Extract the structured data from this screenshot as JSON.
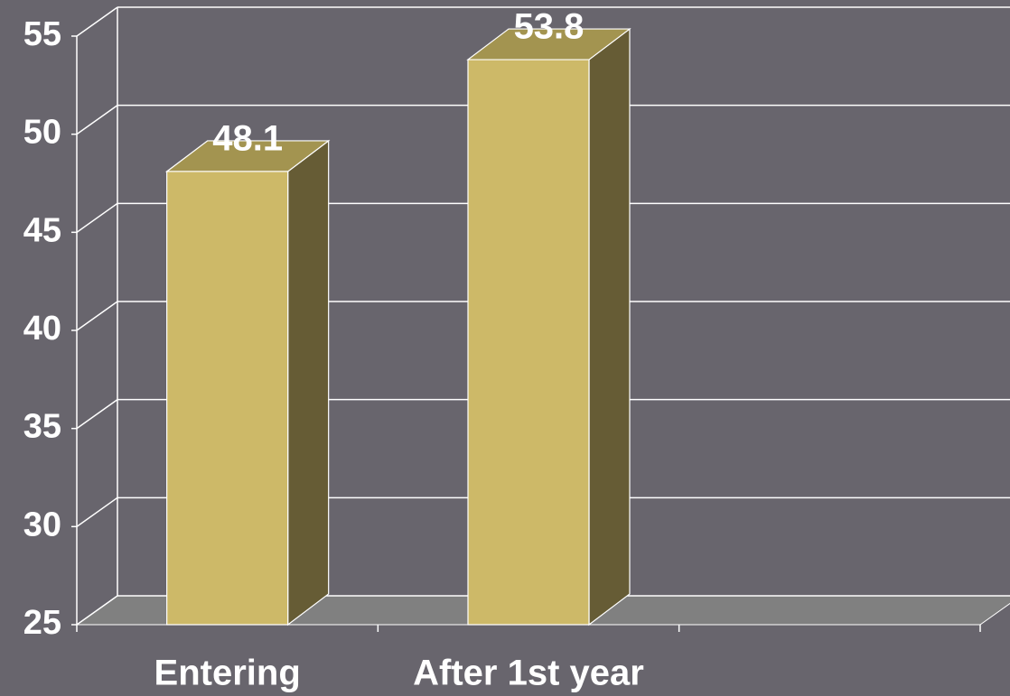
{
  "chart_data": {
    "type": "bar3d",
    "categories": [
      "Entering",
      "After 1st year",
      null
    ],
    "values": [
      48.1,
      53.8,
      null
    ],
    "color": "#cdb968",
    "ylim": [
      25,
      55
    ],
    "yticks": [
      25,
      30,
      35,
      40,
      45,
      50,
      55
    ],
    "grid": true
  }
}
